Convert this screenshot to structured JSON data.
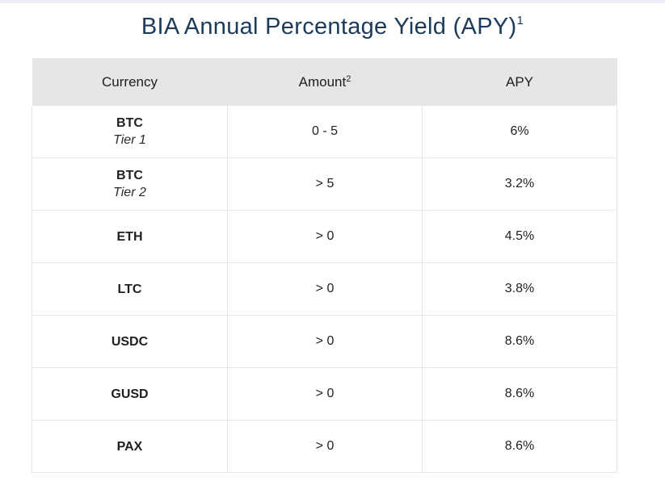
{
  "title": {
    "text": "BIA Annual Percentage Yield (APY)",
    "footnote": "1"
  },
  "table": {
    "headers": {
      "currency": "Currency",
      "amount": "Amount",
      "amount_footnote": "2",
      "apy": "APY"
    },
    "rows": [
      {
        "currency": "BTC",
        "tier": "Tier 1",
        "amount": "0 - 5",
        "apy": "6%"
      },
      {
        "currency": "BTC",
        "tier": "Tier 2",
        "amount": "> 5",
        "apy": "3.2%"
      },
      {
        "currency": "ETH",
        "tier": "",
        "amount": "> 0",
        "apy": "4.5%"
      },
      {
        "currency": "LTC",
        "tier": "",
        "amount": "> 0",
        "apy": "3.8%"
      },
      {
        "currency": "USDC",
        "tier": "",
        "amount": "> 0",
        "apy": "8.6%"
      },
      {
        "currency": "GUSD",
        "tier": "",
        "amount": "> 0",
        "apy": "8.6%"
      },
      {
        "currency": "PAX",
        "tier": "",
        "amount": "> 0",
        "apy": "8.6%"
      }
    ]
  }
}
